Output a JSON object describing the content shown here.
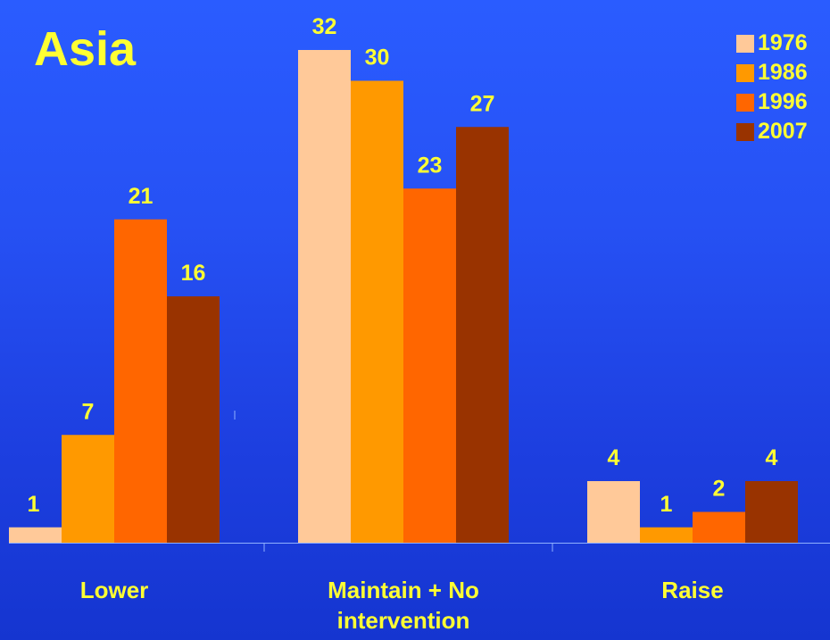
{
  "chart_data": {
    "type": "bar",
    "title": "Asia",
    "categories": [
      "Lower",
      "Maintain + No intervention",
      "Raise"
    ],
    "category_lines": [
      [
        "Lower"
      ],
      [
        "Maintain + No",
        "intervention"
      ],
      [
        "Raise"
      ]
    ],
    "series": [
      {
        "name": "1976",
        "color": "#ffc999",
        "values": [
          1,
          32,
          4
        ]
      },
      {
        "name": "1986",
        "color": "#ff9900",
        "values": [
          7,
          30,
          1
        ]
      },
      {
        "name": "1996",
        "color": "#ff6600",
        "values": [
          21,
          23,
          2
        ]
      },
      {
        "name": "2007",
        "color": "#993300",
        "values": [
          16,
          27,
          4
        ]
      }
    ],
    "ylim": [
      0,
      32
    ],
    "xlabel": "",
    "ylabel": "",
    "grid": false,
    "legend": "top-right",
    "label_color": "#ffff33",
    "axis_color": "#8fb0ff"
  }
}
